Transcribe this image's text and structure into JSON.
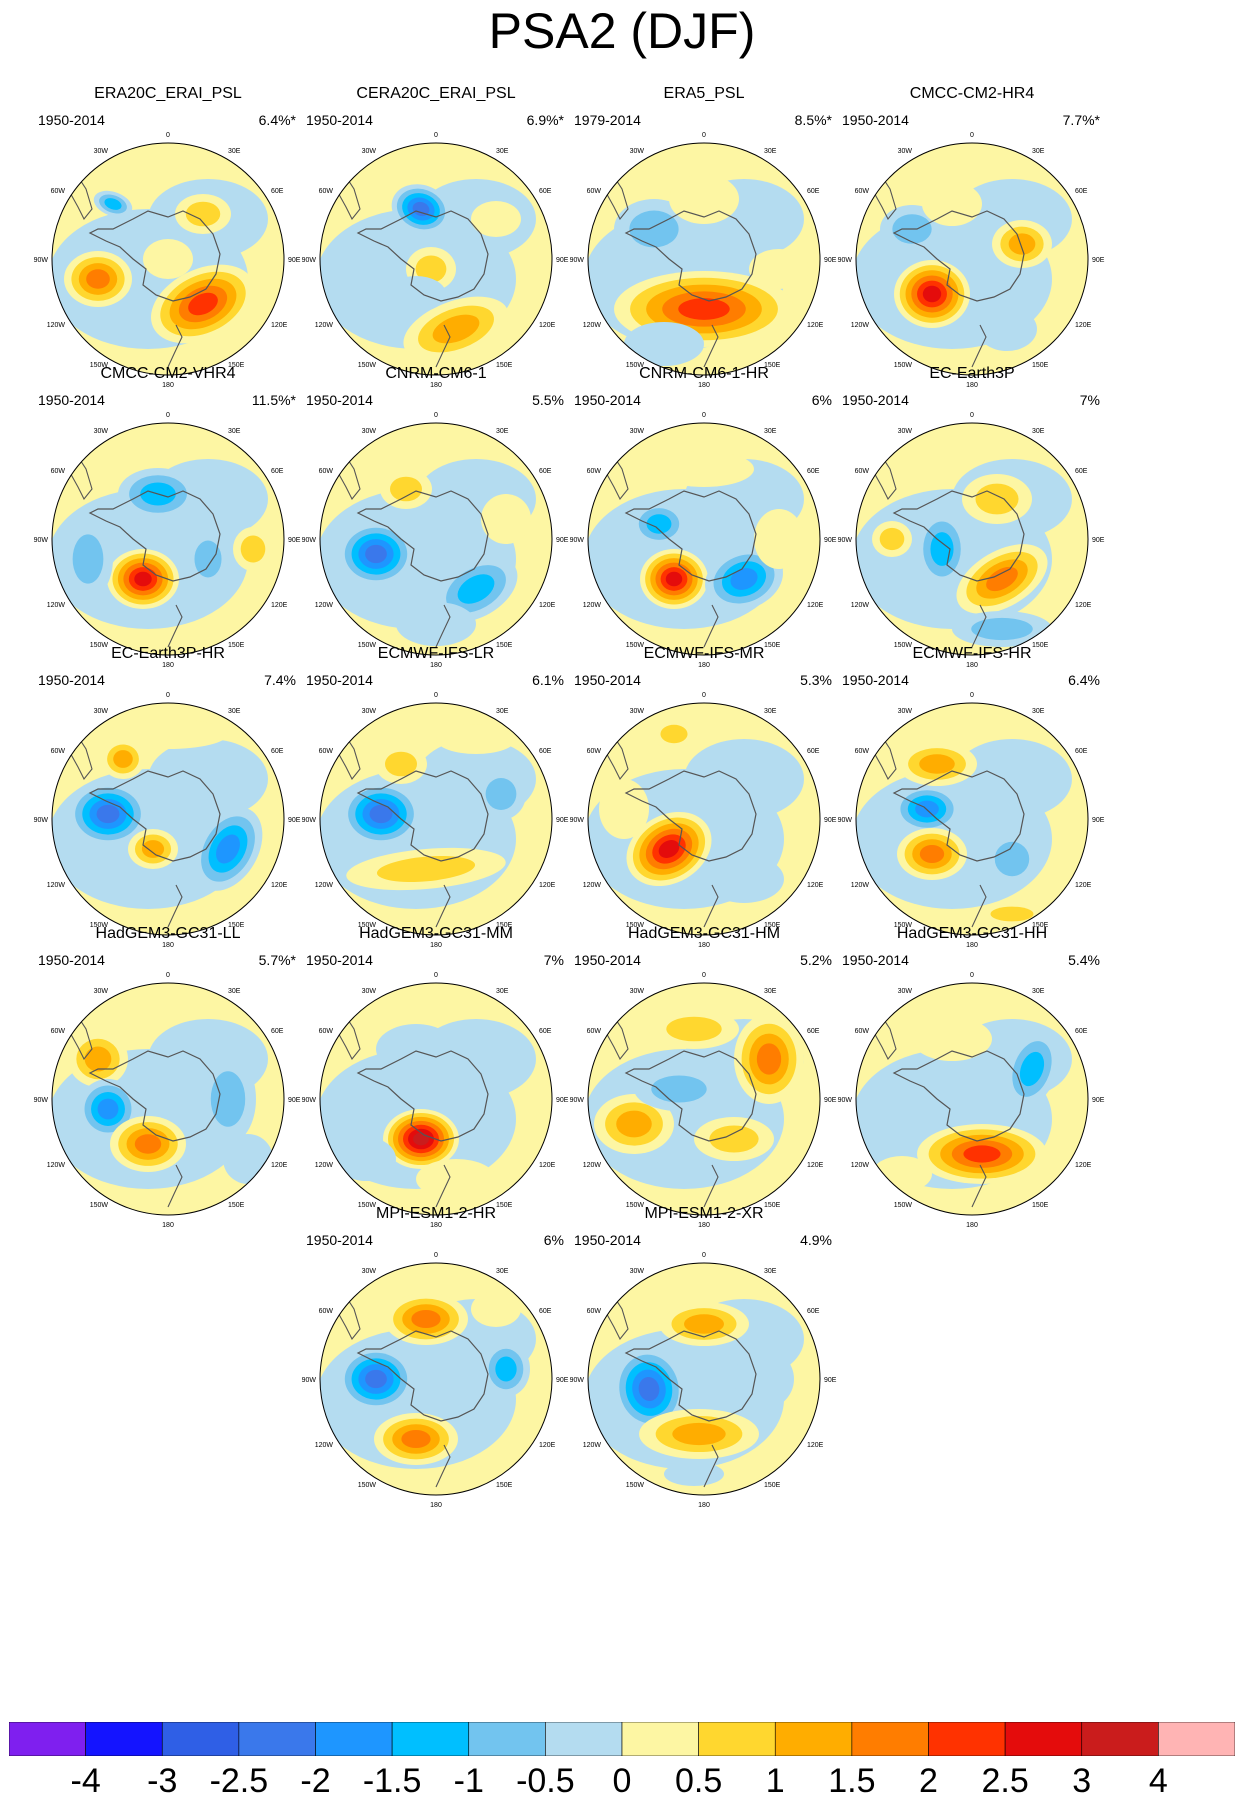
{
  "title": "PSA2 (DJF)",
  "map_labels": {
    "lon_0": "0",
    "lon_30e": "30E",
    "lon_60e": "60E",
    "lon_90e": "90E",
    "lon_120e": "120E",
    "lon_150e": "150E",
    "lon_180": "180",
    "lon_150w": "150W",
    "lon_120w": "120W",
    "lon_90w": "90W",
    "lon_60w": "60W",
    "lon_30w": "30W"
  },
  "colors": {
    "land_outline": "#555555",
    "map_border": "#000000",
    "levels": [
      "#7f1fef",
      "#1414ff",
      "#2f5fe6",
      "#3a78eb",
      "#1e96ff",
      "#00bfff",
      "#72c4ef",
      "#b4dcf0",
      "#fdf6a3",
      "#ffd72f",
      "#ffad00",
      "#ff7d00",
      "#ff3200",
      "#e40c0c",
      "#ca1c1c",
      "#ffb4b4"
    ]
  },
  "colorbar": {
    "ticks": [
      "-4",
      "-3",
      "-2.5",
      "-2",
      "-1.5",
      "-1",
      "-0.5",
      "0",
      "0.5",
      "1",
      "1.5",
      "2",
      "2.5",
      "3",
      "4"
    ]
  },
  "panels": [
    {
      "name": "ERA20C_ERAI_PSL",
      "period": "1950-2014",
      "variance": "6.4%*"
    },
    {
      "name": "CERA20C_ERAI_PSL",
      "period": "1950-2014",
      "variance": "6.9%*"
    },
    {
      "name": "ERA5_PSL",
      "period": "1979-2014",
      "variance": "8.5%*"
    },
    {
      "name": "CMCC-CM2-HR4",
      "period": "1950-2014",
      "variance": "7.7%*"
    },
    {
      "name": "CMCC-CM2-VHR4",
      "period": "1950-2014",
      "variance": "11.5%*"
    },
    {
      "name": "CNRM-CM6-1",
      "period": "1950-2014",
      "variance": "5.5%"
    },
    {
      "name": "CNRM-CM6-1-HR",
      "period": "1950-2014",
      "variance": "6%"
    },
    {
      "name": "EC-Earth3P",
      "period": "1950-2014",
      "variance": "7%"
    },
    {
      "name": "EC-Earth3P-HR",
      "period": "1950-2014",
      "variance": "7.4%"
    },
    {
      "name": "ECMWF-IFS-LR",
      "period": "1950-2014",
      "variance": "6.1%"
    },
    {
      "name": "ECMWF-IFS-MR",
      "period": "1950-2014",
      "variance": "5.3%"
    },
    {
      "name": "ECMWF-IFS-HR",
      "period": "1950-2014",
      "variance": "6.4%"
    },
    {
      "name": "HadGEM3-GC31-LL",
      "period": "1950-2014",
      "variance": "5.7%*"
    },
    {
      "name": "HadGEM3-GC31-MM",
      "period": "1950-2014",
      "variance": "7%"
    },
    {
      "name": "HadGEM3-GC31-HM",
      "period": "1950-2014",
      "variance": "5.2%"
    },
    {
      "name": "HadGEM3-GC31-HH",
      "period": "1950-2014",
      "variance": "5.4%"
    },
    {
      "name": "MPI-ESM1-2-HR",
      "period": "1950-2014",
      "variance": "6%"
    },
    {
      "name": "MPI-ESM1-2-XR",
      "period": "1950-2014",
      "variance": "4.9%"
    }
  ]
}
